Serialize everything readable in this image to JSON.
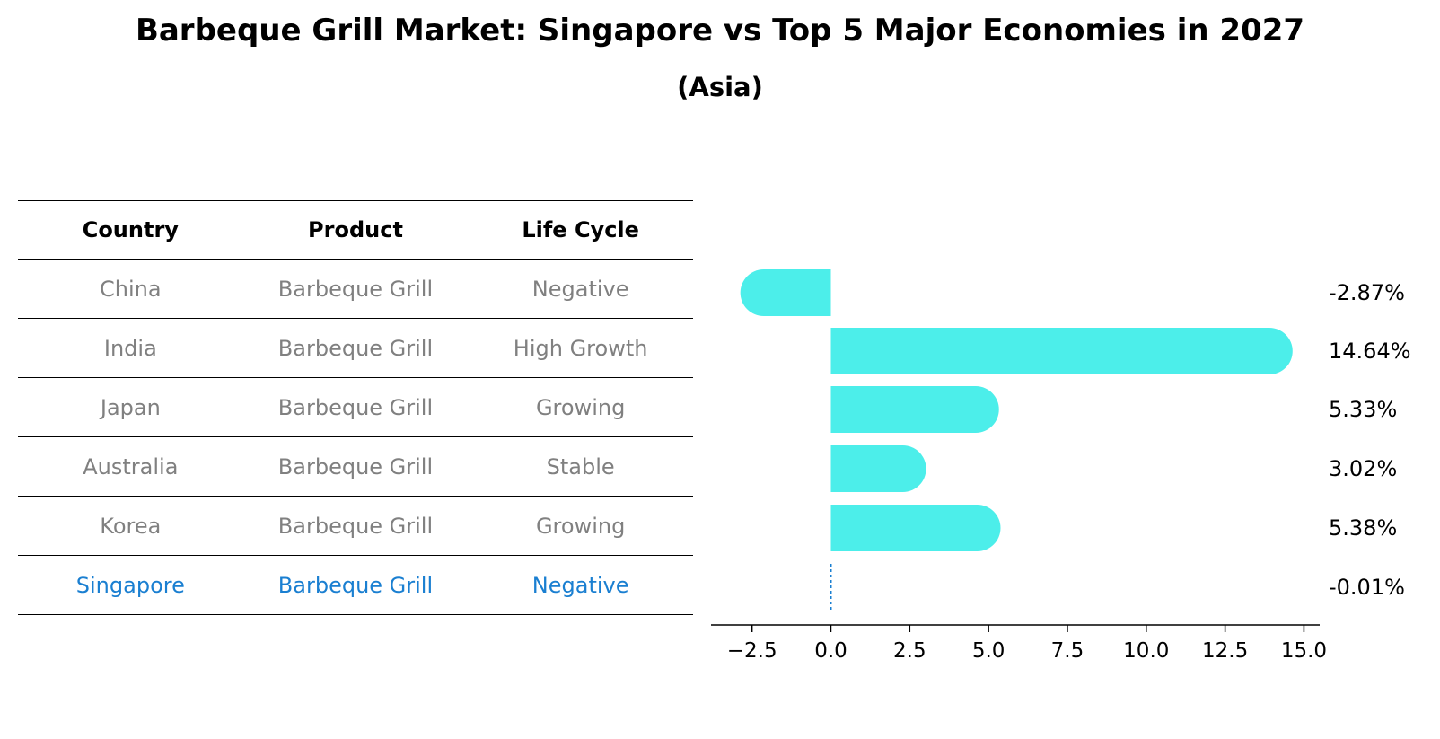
{
  "title": "Barbeque Grill Market: Singapore vs Top 5 Major Economies in 2027",
  "subtitle": "(Asia)",
  "table": {
    "headers": [
      "Country",
      "Product",
      "Life Cycle"
    ],
    "rows": [
      [
        "China",
        "Barbeque Grill",
        "Negative"
      ],
      [
        "India",
        "Barbeque Grill",
        "High Growth"
      ],
      [
        "Japan",
        "Barbeque Grill",
        "Growing"
      ],
      [
        "Australia",
        "Barbeque Grill",
        "Stable"
      ],
      [
        "Korea",
        "Barbeque Grill",
        "Growing"
      ],
      [
        "Singapore",
        "Barbeque Grill",
        "Negative"
      ]
    ]
  },
  "colors": {
    "bar": "#4ceeea",
    "highlight": "#1a7fd1",
    "muted": "#808080"
  },
  "chart_data": {
    "type": "bar",
    "orientation": "horizontal",
    "categories": [
      "China",
      "India",
      "Japan",
      "Australia",
      "Korea",
      "Singapore"
    ],
    "values": [
      -2.87,
      14.64,
      5.33,
      3.02,
      5.38,
      -0.01
    ],
    "value_labels": [
      "-2.87%",
      "14.64%",
      "5.33%",
      "3.02%",
      "5.38%",
      "-0.01%"
    ],
    "xlim": [
      -3.8,
      15.5
    ],
    "xticks": [
      -2.5,
      0.0,
      2.5,
      5.0,
      7.5,
      10.0,
      12.5,
      15.0
    ],
    "xtick_labels": [
      "−2.5",
      "0.0",
      "2.5",
      "5.0",
      "7.5",
      "10.0",
      "12.5",
      "15.0"
    ],
    "xlabel": "",
    "ylabel": "",
    "grid": false
  }
}
